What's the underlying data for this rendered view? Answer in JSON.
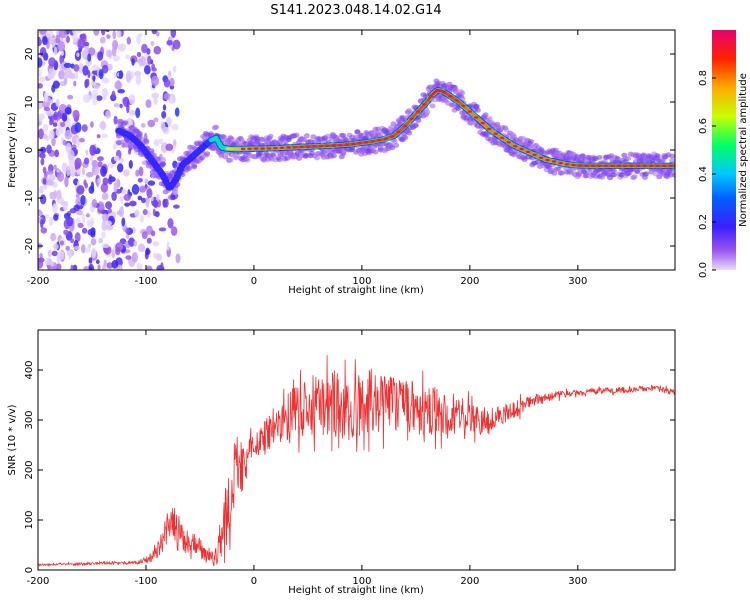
{
  "figure_title": "S141.2023.048.14.02.G14",
  "chart_data": [
    {
      "type": "heatmap",
      "xlabel": "Height of straight line (km)",
      "ylabel": "Frequency (Hz)",
      "xlim": [
        -200,
        390
      ],
      "ylim": [
        -25,
        25
      ],
      "xticks": [
        -200,
        -100,
        0,
        100,
        200,
        300
      ],
      "yticks": [
        -20,
        -10,
        0,
        10,
        20
      ],
      "colorbar": {
        "label": "Normalized spectral amplitude",
        "range": [
          0,
          1
        ],
        "ticks": [
          0.0,
          0.2,
          0.4,
          0.6,
          0.8
        ],
        "tick_labels": [
          "0.0",
          "0.2",
          "0.4",
          "0.6",
          "0.8"
        ],
        "colormap": [
          "#d9c2f5",
          "#7b2fe0",
          "#1f1fff",
          "#00c8ff",
          "#00ff66",
          "#c8ff00",
          "#ffaa00",
          "#ff2200",
          "#e8006e"
        ]
      },
      "ridge": {
        "x": [
          -125,
          -115,
          -105,
          -95,
          -85,
          -78,
          -72,
          -66,
          -60,
          -55,
          -50,
          -45,
          -40,
          -35,
          -30,
          -25,
          -20,
          -10,
          0,
          10,
          20,
          30,
          40,
          50,
          60,
          70,
          80,
          90,
          100,
          110,
          120,
          130,
          140,
          150,
          160,
          165,
          170,
          175,
          180,
          190,
          200,
          210,
          220,
          230,
          240,
          250,
          260,
          270,
          280,
          290,
          300,
          310,
          320,
          330,
          340,
          350,
          360,
          370,
          380,
          390
        ],
        "y": [
          4,
          3,
          1,
          -2,
          -5,
          -8,
          -6,
          -3,
          -2,
          -1,
          0,
          1,
          2,
          2.5,
          0.5,
          0.3,
          0.2,
          0.2,
          0.3,
          0.3,
          0.4,
          0.5,
          0.6,
          0.7,
          0.8,
          0.9,
          1.0,
          1.2,
          1.5,
          1.8,
          2.2,
          3,
          5,
          7.5,
          10,
          11.5,
          12.5,
          12.2,
          11.5,
          10,
          8,
          6,
          4,
          2.5,
          1,
          0,
          -1,
          -2,
          -2.5,
          -3,
          -3.2,
          -3.3,
          -3.3,
          -3.3,
          -3.3,
          -3.3,
          -3.3,
          -3.3,
          -3.3,
          -3.3
        ],
        "amplitude": [
          0.3,
          0.3,
          0.3,
          0.3,
          0.3,
          0.3,
          0.3,
          0.3,
          0.3,
          0.3,
          0.3,
          0.35,
          0.4,
          0.5,
          0.6,
          0.65,
          0.7,
          0.75,
          0.8,
          0.8,
          0.8,
          0.8,
          0.85,
          0.85,
          0.85,
          0.85,
          0.85,
          0.85,
          0.85,
          0.85,
          0.85,
          0.85,
          0.85,
          0.85,
          0.85,
          0.9,
          0.9,
          0.9,
          0.85,
          0.85,
          0.8,
          0.8,
          0.8,
          0.8,
          0.8,
          0.8,
          0.8,
          0.8,
          0.8,
          0.8,
          0.85,
          0.85,
          0.85,
          0.85,
          0.85,
          0.85,
          0.85,
          0.85,
          0.85,
          0.85
        ]
      },
      "noise_region_x": [
        -200,
        -70
      ]
    },
    {
      "type": "line",
      "xlabel": "Height of straight line (km)",
      "ylabel": "SNR (10 * v/v)",
      "xlim": [
        -200,
        390
      ],
      "ylim": [
        0,
        480
      ],
      "xticks": [
        -200,
        -100,
        0,
        100,
        200,
        300
      ],
      "yticks": [
        0,
        100,
        200,
        300,
        400
      ],
      "line_color": "#f03030",
      "series": [
        {
          "x": [
            -200,
            -180,
            -160,
            -140,
            -120,
            -110,
            -100,
            -90,
            -85,
            -80,
            -75,
            -70,
            -65,
            -60,
            -55,
            -50,
            -45,
            -40,
            -35,
            -30,
            -25,
            -20,
            -15,
            -10,
            -5,
            0,
            5,
            10,
            20,
            30,
            40,
            50,
            60,
            70,
            80,
            90,
            100,
            110,
            120,
            130,
            140,
            150,
            160,
            170,
            180,
            190,
            200,
            210,
            220,
            230,
            240,
            250,
            260,
            270,
            280,
            290,
            300,
            320,
            340,
            360,
            370,
            380,
            390
          ],
          "y": [
            10,
            12,
            12,
            14,
            14,
            15,
            18,
            35,
            60,
            80,
            90,
            85,
            60,
            50,
            55,
            45,
            30,
            20,
            25,
            60,
            120,
            180,
            220,
            200,
            230,
            240,
            260,
            270,
            290,
            305,
            320,
            330,
            325,
            330,
            335,
            320,
            330,
            345,
            330,
            325,
            330,
            320,
            315,
            320,
            315,
            310,
            305,
            300,
            300,
            310,
            320,
            330,
            340,
            345,
            350,
            352,
            355,
            358,
            360,
            362,
            365,
            360,
            355
          ],
          "jitter": [
            2,
            2,
            2,
            3,
            3,
            3,
            5,
            15,
            25,
            30,
            35,
            30,
            25,
            20,
            20,
            20,
            15,
            15,
            20,
            40,
            70,
            80,
            60,
            50,
            40,
            30,
            30,
            35,
            40,
            45,
            55,
            60,
            65,
            70,
            70,
            65,
            65,
            65,
            60,
            60,
            55,
            55,
            50,
            50,
            45,
            40,
            35,
            30,
            25,
            20,
            18,
            15,
            12,
            10,
            8,
            7,
            6,
            6,
            6,
            6,
            6,
            6,
            6
          ]
        }
      ]
    }
  ]
}
